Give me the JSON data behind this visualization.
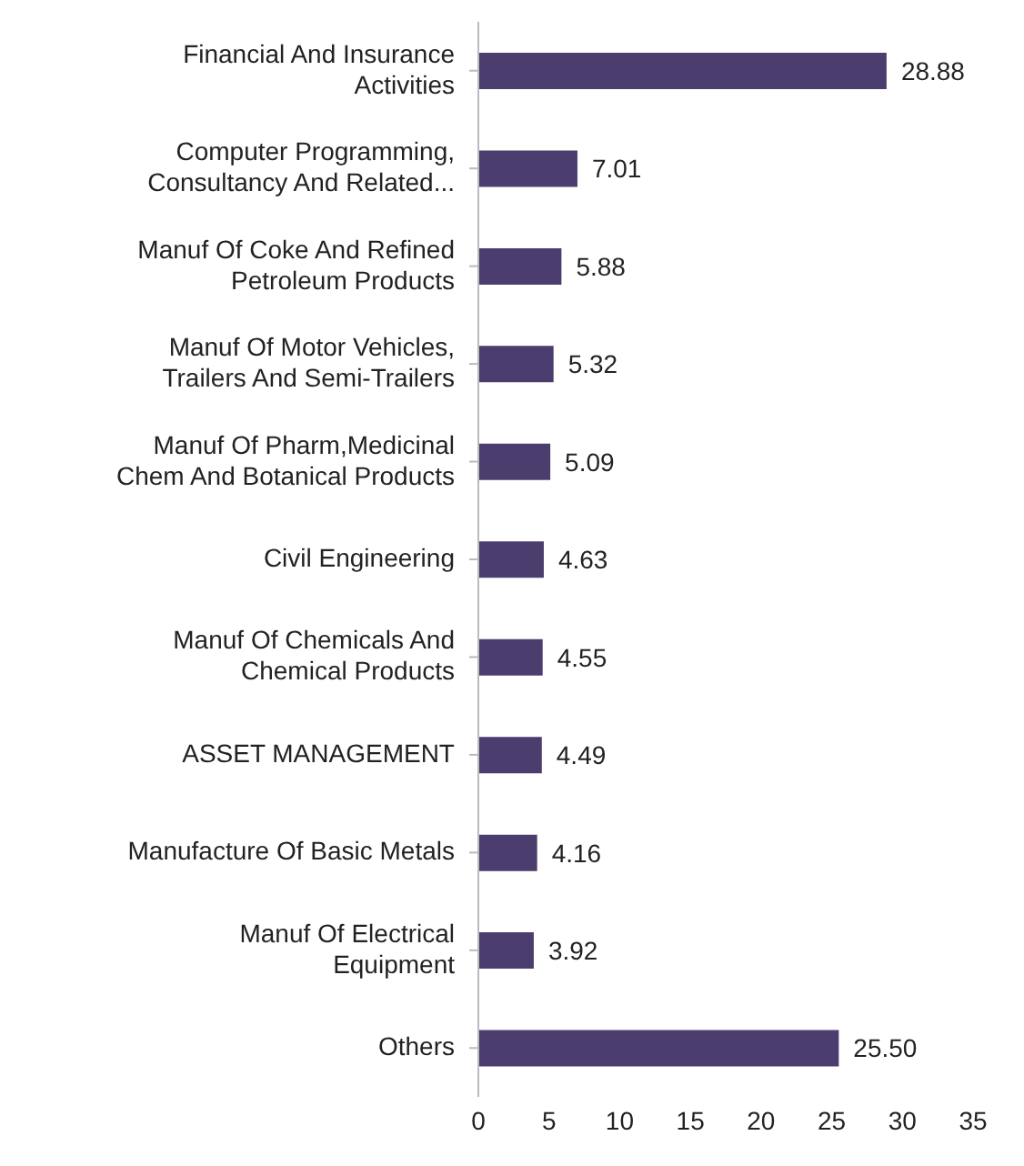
{
  "chart_data": {
    "type": "bar",
    "orientation": "horizontal",
    "categories": [
      "Financial And Insurance Activities",
      "Computer Programming, Consultancy And Related...",
      "Manuf Of Coke And Refined Petroleum Products",
      "Manuf Of Motor Vehicles, Trailers And Semi-Trailers",
      "Manuf Of Pharm,Medicinal Chem And Botanical Products",
      "Civil Engineering",
      "Manuf Of Chemicals And Chemical Products",
      "ASSET MANAGEMENT",
      "Manufacture Of Basic Metals",
      "Manuf Of Electrical Equipment",
      "Others"
    ],
    "values": [
      28.88,
      7.01,
      5.88,
      5.32,
      5.09,
      4.63,
      4.55,
      4.49,
      4.16,
      3.92,
      25.5
    ],
    "value_labels": [
      "28.88",
      "7.01",
      "5.88",
      "5.32",
      "5.09",
      "4.63",
      "4.55",
      "4.49",
      "4.16",
      "3.92",
      "25.50"
    ],
    "color": "#4b3d6e",
    "xlim": [
      0,
      35
    ],
    "xticks": [
      0,
      5,
      10,
      15,
      20,
      25,
      30,
      35
    ],
    "grid": false,
    "legend": false
  }
}
